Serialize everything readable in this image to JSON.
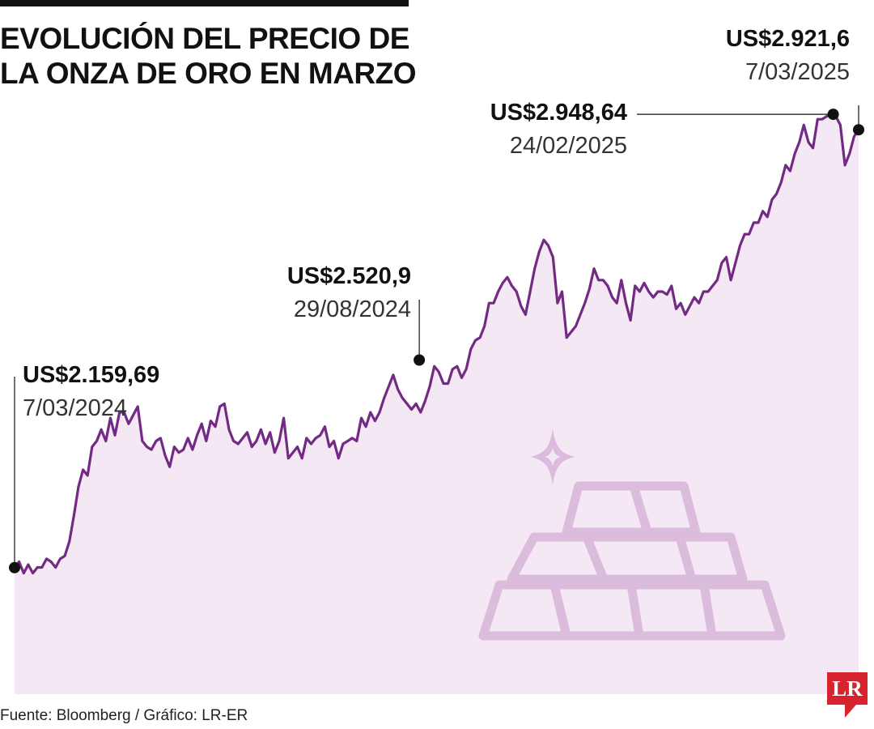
{
  "header": {
    "title_line1": "EVOLUCIÓN DEL PRECIO DE",
    "title_line2": "LA ONZA DE ORO EN MARZO"
  },
  "footer": {
    "source": "Fuente: Bloomberg / Gráfico: LR-ER",
    "logo": "LR"
  },
  "colors": {
    "line": "#732a84",
    "area": "#f4e8f4",
    "icon": "#dcbcdc",
    "logo_bg": "#d7232e"
  },
  "icons": [
    "gold-bars-icon",
    "sparkle-icon",
    "lr-logo"
  ],
  "chart_data": {
    "type": "area",
    "grid": false,
    "legend": "none",
    "x_range": [
      "2024-03-07",
      "2025-03-07"
    ],
    "ylim": [
      1900,
      2960
    ],
    "series": [
      {
        "values": [
          2160,
          2170,
          2150,
          2165,
          2150,
          2160,
          2160,
          2175,
          2170,
          2160,
          2175,
          2180,
          2205,
          2250,
          2300,
          2330,
          2320,
          2370,
          2380,
          2400,
          2380,
          2420,
          2390,
          2430,
          2430,
          2410,
          2425,
          2440,
          2380,
          2370,
          2365,
          2380,
          2385,
          2355,
          2335,
          2370,
          2360,
          2365,
          2385,
          2365,
          2390,
          2410,
          2380,
          2415,
          2405,
          2440,
          2445,
          2400,
          2380,
          2375,
          2385,
          2395,
          2370,
          2380,
          2400,
          2375,
          2395,
          2360,
          2380,
          2420,
          2350,
          2360,
          2370,
          2350,
          2385,
          2375,
          2385,
          2390,
          2405,
          2370,
          2380,
          2350,
          2375,
          2380,
          2385,
          2380,
          2420,
          2405,
          2430,
          2415,
          2430,
          2455,
          2475,
          2495,
          2470,
          2455,
          2445,
          2435,
          2445,
          2430,
          2450,
          2475,
          2510,
          2500,
          2480,
          2480,
          2505,
          2510,
          2490,
          2505,
          2540,
          2555,
          2560,
          2580,
          2620,
          2620,
          2640,
          2655,
          2665,
          2650,
          2640,
          2615,
          2600,
          2640,
          2680,
          2710,
          2730,
          2720,
          2700,
          2620,
          2640,
          2560,
          2570,
          2580,
          2600,
          2620,
          2645,
          2680,
          2660,
          2660,
          2650,
          2630,
          2620,
          2660,
          2620,
          2590,
          2650,
          2640,
          2655,
          2640,
          2630,
          2640,
          2640,
          2635,
          2650,
          2610,
          2620,
          2600,
          2615,
          2630,
          2620,
          2640,
          2640,
          2650,
          2660,
          2690,
          2700,
          2660,
          2690,
          2720,
          2740,
          2740,
          2760,
          2760,
          2780,
          2770,
          2800,
          2810,
          2830,
          2860,
          2850,
          2880,
          2900,
          2930,
          2900,
          2890,
          2940,
          2940,
          2945,
          2948.64,
          2945,
          2930,
          2860,
          2880,
          2910,
          2921.6
        ]
      }
    ],
    "annotations": [
      {
        "value_label": "US$2.159,69",
        "date_label": "7/03/2024",
        "value": 2159.69,
        "date": "2024-03-07"
      },
      {
        "value_label": "US$2.520,9",
        "date_label": "29/08/2024",
        "value": 2520.9,
        "date": "2024-08-29"
      },
      {
        "value_label": "US$2.948,64",
        "date_label": "24/02/2025",
        "value": 2948.64,
        "date": "2025-02-24"
      },
      {
        "value_label": "US$2.921,6",
        "date_label": "7/03/2025",
        "value": 2921.6,
        "date": "2025-03-07"
      }
    ]
  }
}
